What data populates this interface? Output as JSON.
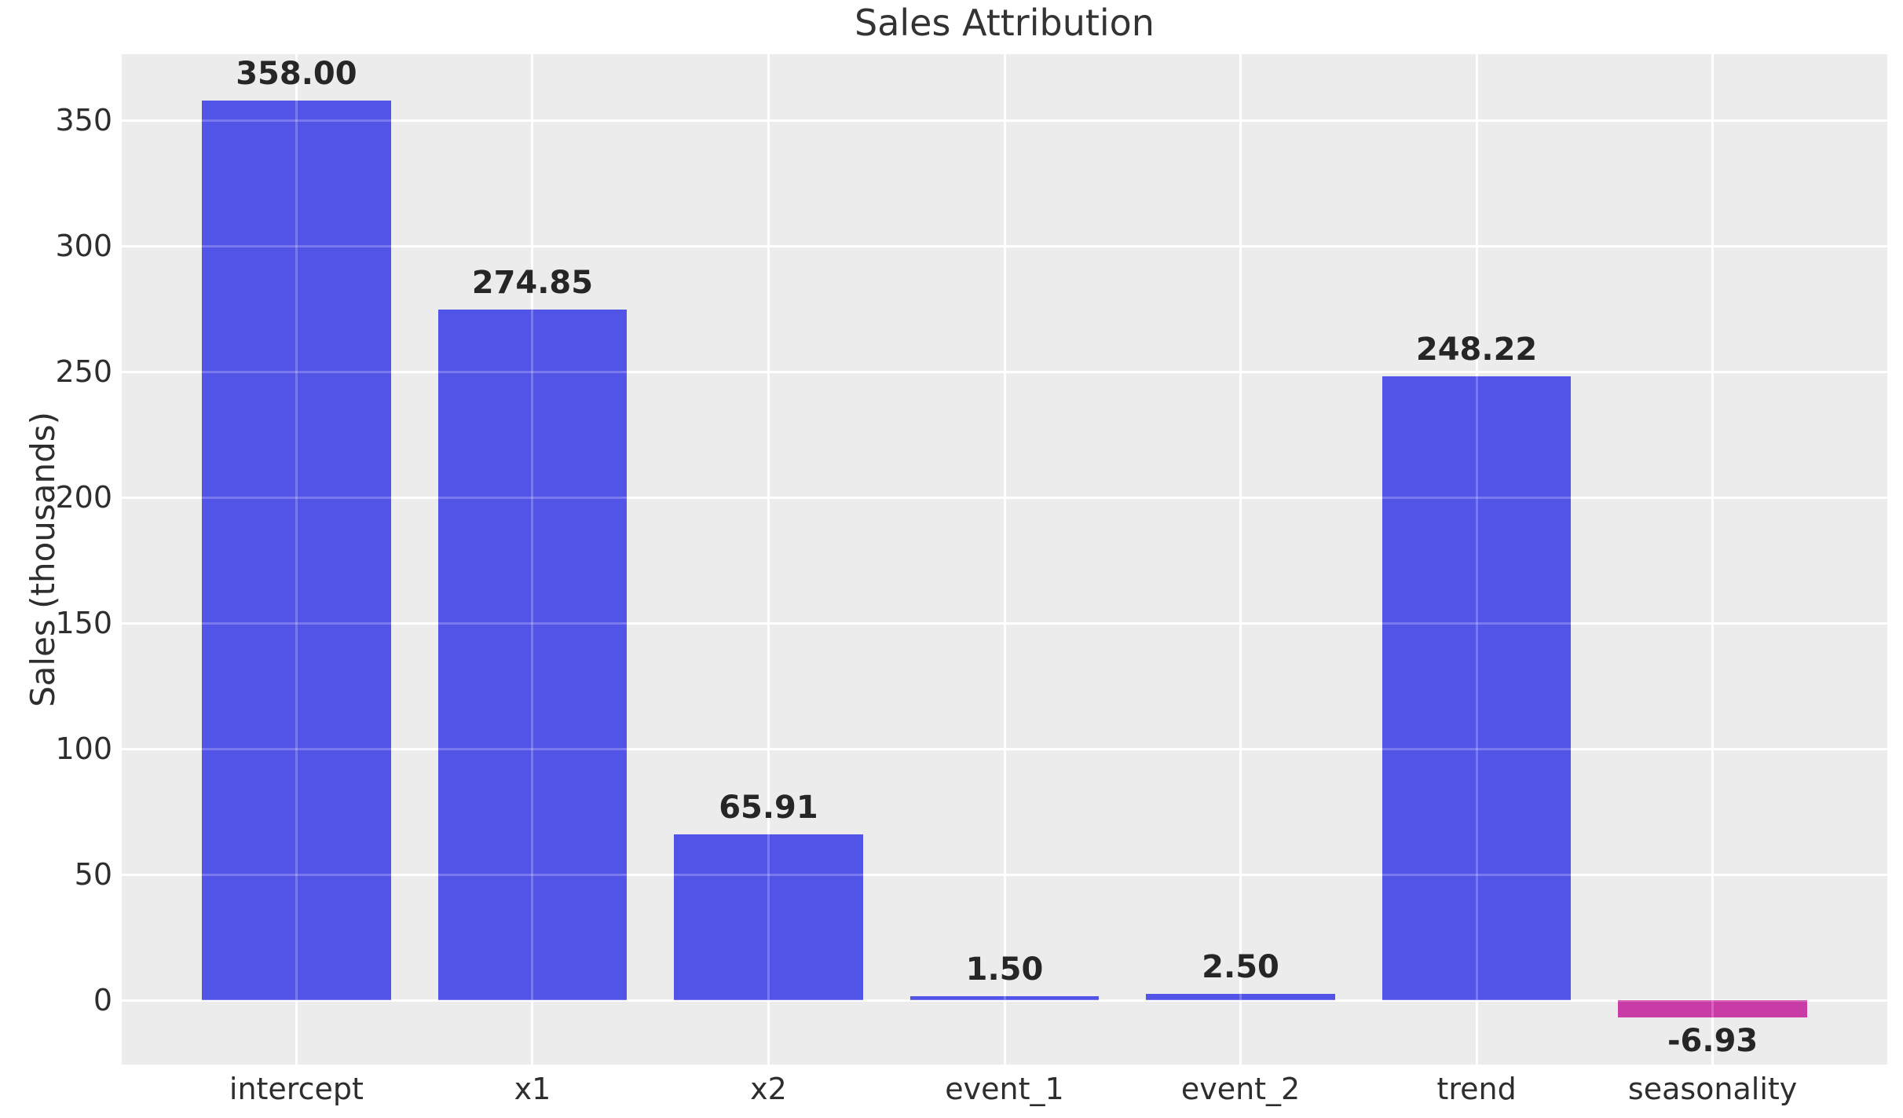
{
  "chart_data": {
    "type": "bar",
    "title": "Sales Attribution",
    "xlabel": "",
    "ylabel": "Sales (thousands)",
    "categories": [
      "intercept",
      "x1",
      "x2",
      "event_1",
      "event_2",
      "trend",
      "seasonality"
    ],
    "values": [
      358.0,
      274.85,
      65.91,
      1.5,
      2.5,
      248.22,
      -6.93
    ],
    "bar_labels": [
      "358.00",
      "274.85",
      "65.91",
      "1.50",
      "2.50",
      "248.22",
      "-6.93"
    ],
    "yticks": [
      0,
      50,
      100,
      150,
      200,
      250,
      300,
      350
    ],
    "ylim": [
      -25.6,
      376.3
    ],
    "xlim": [
      -0.74,
      6.74
    ],
    "bar_width_units": 0.8,
    "grid": true,
    "legend": "none",
    "positive_bar_color": "#5254E8",
    "negative_bar_color": "#C93CA7",
    "plot_background_color": "#ECECEC",
    "grid_color": "#FFFFFF"
  }
}
